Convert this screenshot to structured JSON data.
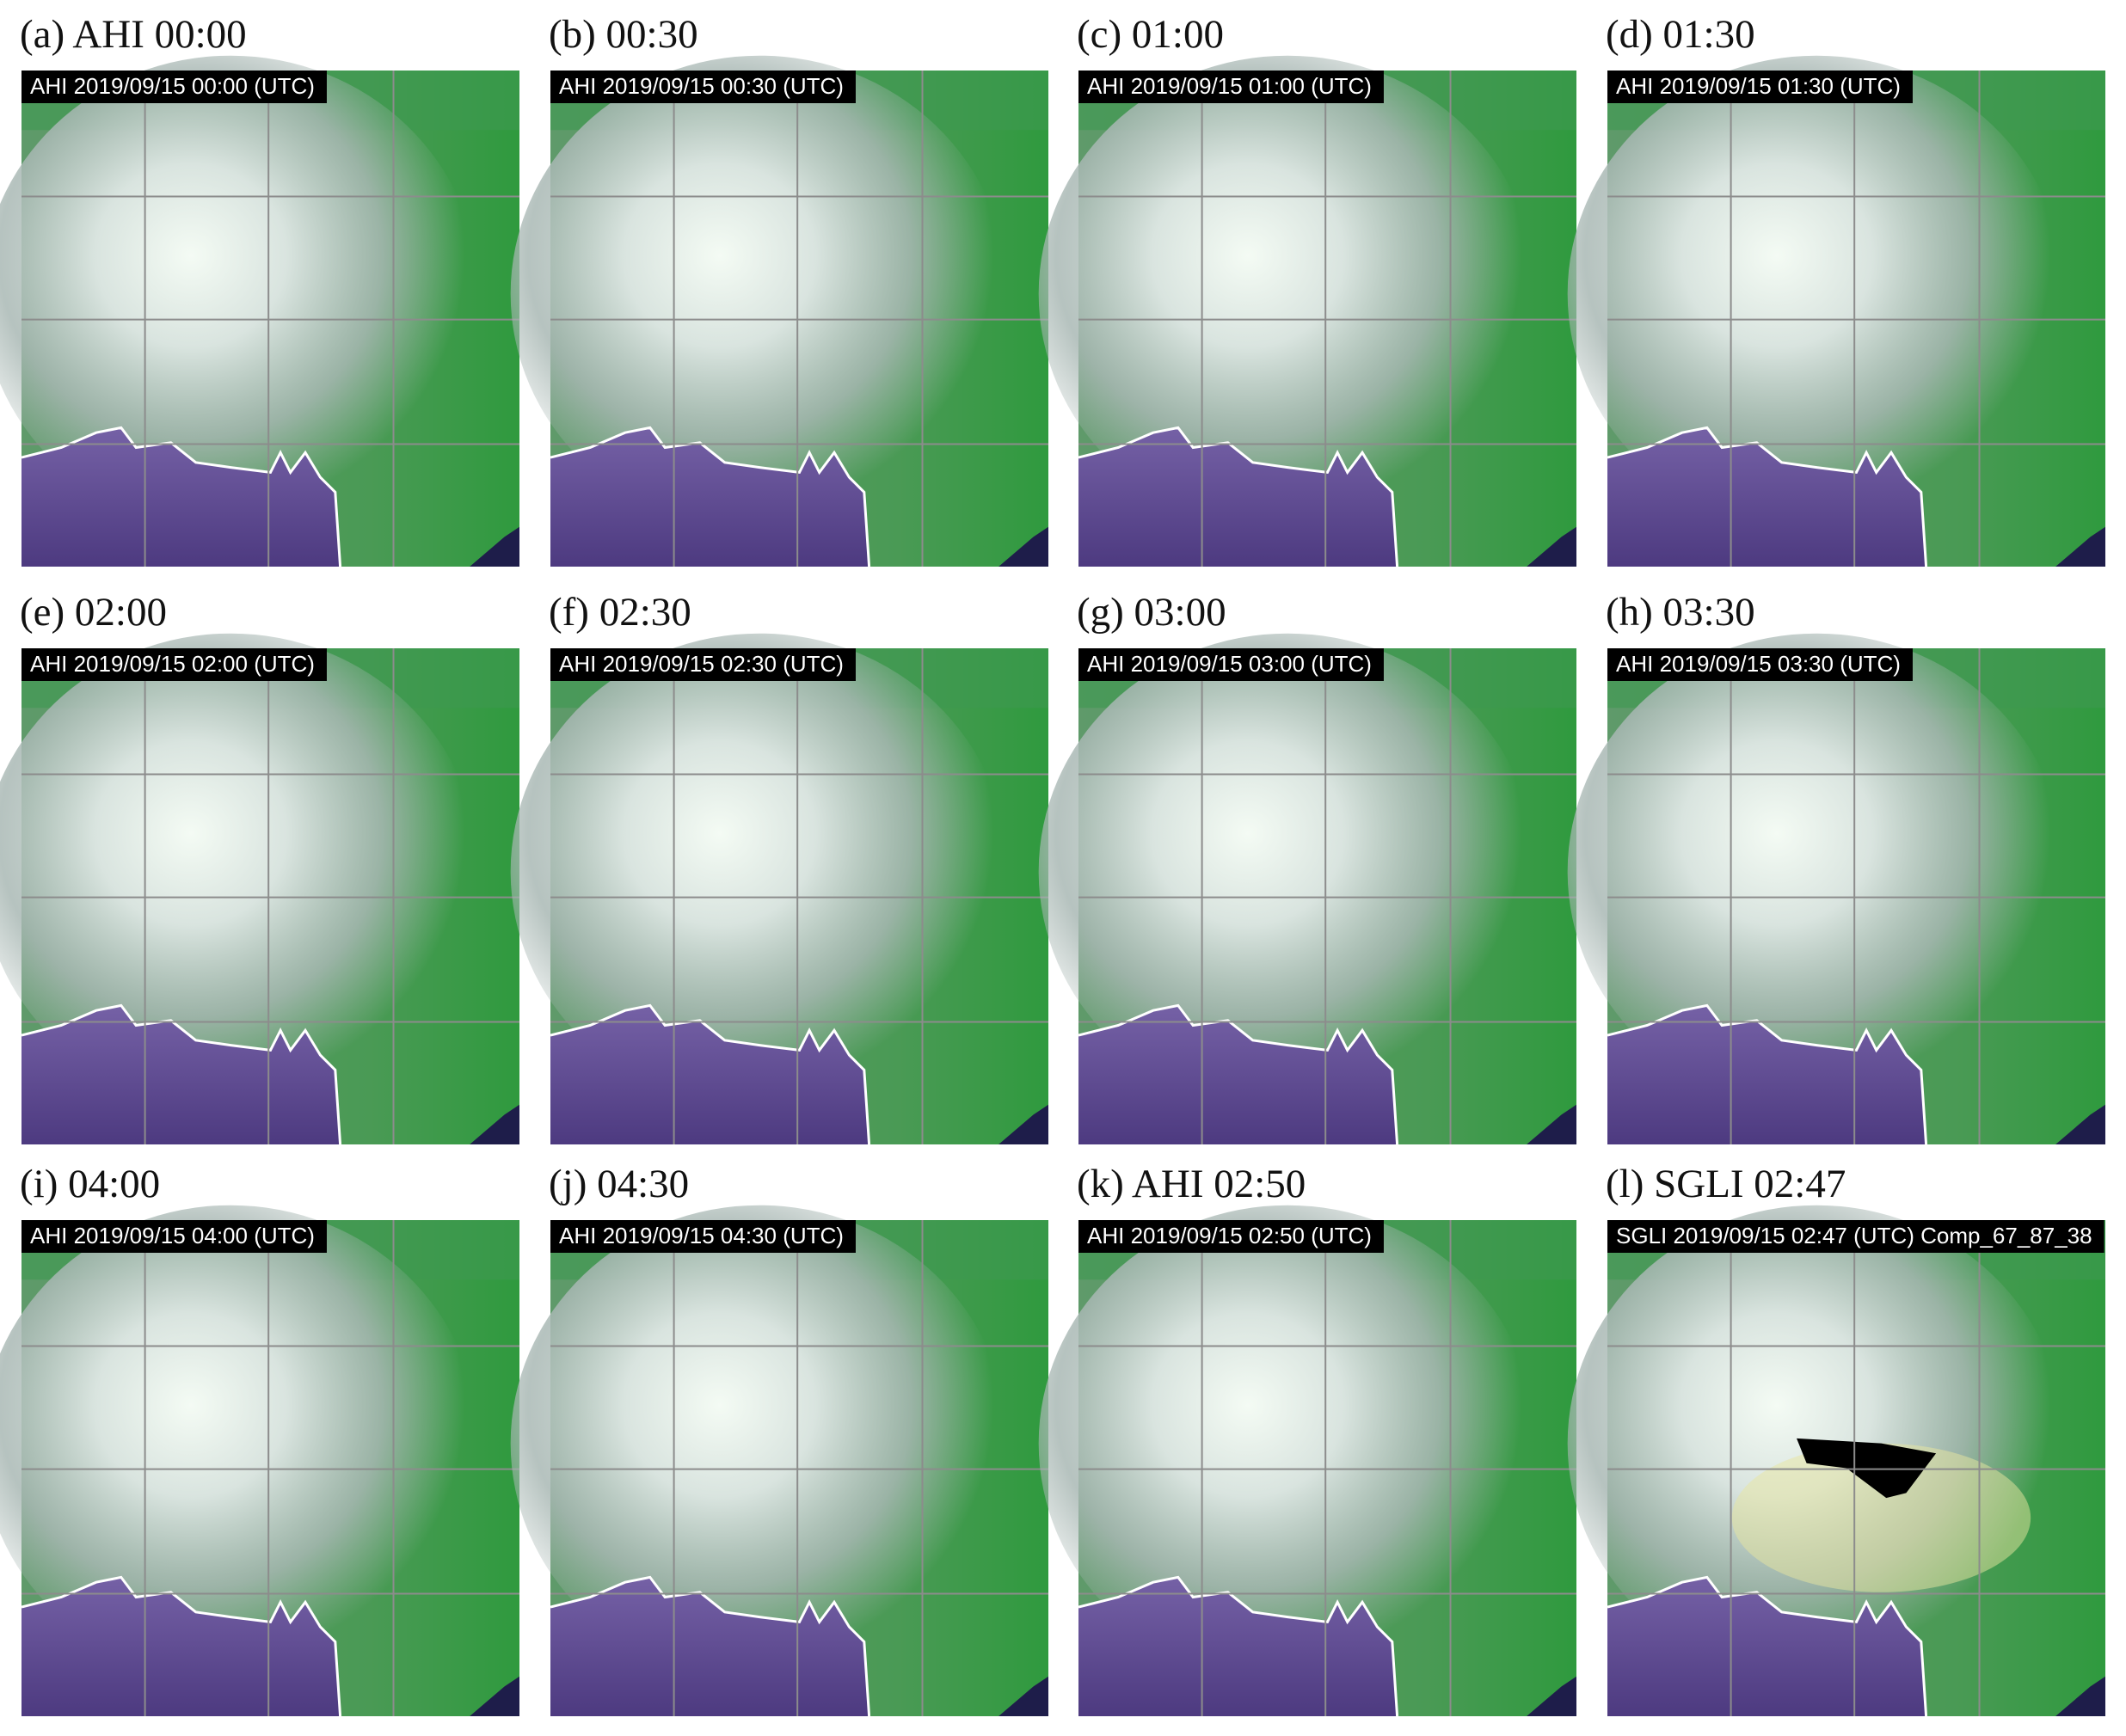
{
  "panels": [
    {
      "label": "(a) AHI 00:00",
      "caption": "AHI 2019/09/15 00:00 (UTC)"
    },
    {
      "label": "(b) 00:30",
      "caption": "AHI 2019/09/15 00:30 (UTC)"
    },
    {
      "label": "(c) 01:00",
      "caption": "AHI 2019/09/15 01:00 (UTC)"
    },
    {
      "label": "(d) 01:30",
      "caption": "AHI 2019/09/15 01:30 (UTC)"
    },
    {
      "label": "(e) 02:00",
      "caption": "AHI 2019/09/15 02:00 (UTC)"
    },
    {
      "label": "(f) 02:30",
      "caption": "AHI 2019/09/15 02:30 (UTC)"
    },
    {
      "label": "(g) 03:00",
      "caption": "AHI 2019/09/15 03:00 (UTC)"
    },
    {
      "label": "(h) 03:30",
      "caption": "AHI 2019/09/15 03:30 (UTC)"
    },
    {
      "label": "(i) 04:00",
      "caption": "AHI 2019/09/15 04:00 (UTC)"
    },
    {
      "label": "(j) 04:30",
      "caption": "AHI 2019/09/15 04:30 (UTC)"
    },
    {
      "label": "(k) AHI 02:50",
      "caption": "AHI 2019/09/15 02:50 (UTC)"
    },
    {
      "label": "(l) SGLI 02:47",
      "caption": "SGLI  2019/09/15  02:47 (UTC)  Comp_67_87_38"
    }
  ]
}
